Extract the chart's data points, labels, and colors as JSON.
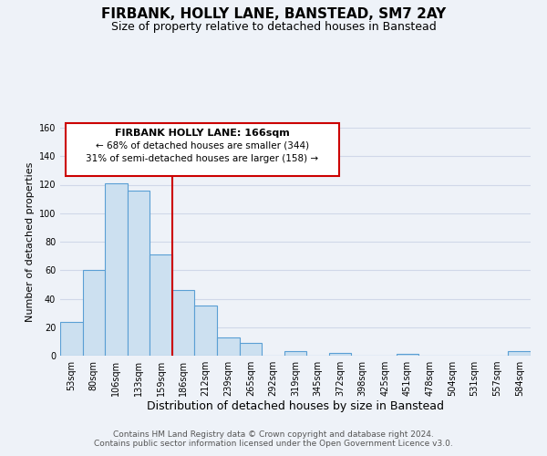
{
  "title": "FIRBANK, HOLLY LANE, BANSTEAD, SM7 2AY",
  "subtitle": "Size of property relative to detached houses in Banstead",
  "xlabel": "Distribution of detached houses by size in Banstead",
  "ylabel": "Number of detached properties",
  "bar_labels": [
    "53sqm",
    "80sqm",
    "106sqm",
    "133sqm",
    "159sqm",
    "186sqm",
    "212sqm",
    "239sqm",
    "265sqm",
    "292sqm",
    "319sqm",
    "345sqm",
    "372sqm",
    "398sqm",
    "425sqm",
    "451sqm",
    "478sqm",
    "504sqm",
    "531sqm",
    "557sqm",
    "584sqm"
  ],
  "bar_values": [
    24,
    60,
    121,
    116,
    71,
    46,
    35,
    13,
    9,
    0,
    3,
    0,
    2,
    0,
    0,
    1,
    0,
    0,
    0,
    0,
    3
  ],
  "bar_color": "#cce0f0",
  "bar_edge_color": "#5a9fd4",
  "vline_color": "#cc0000",
  "ylim": [
    0,
    160
  ],
  "yticks": [
    0,
    20,
    40,
    60,
    80,
    100,
    120,
    140,
    160
  ],
  "annotation_title": "FIRBANK HOLLY LANE: 166sqm",
  "annotation_line1": "← 68% of detached houses are smaller (344)",
  "annotation_line2": "31% of semi-detached houses are larger (158) →",
  "annotation_box_color": "#ffffff",
  "annotation_box_edge": "#cc0000",
  "footer_line1": "Contains HM Land Registry data © Crown copyright and database right 2024.",
  "footer_line2": "Contains public sector information licensed under the Open Government Licence v3.0.",
  "background_color": "#eef2f8",
  "grid_color": "#d0d8e8",
  "title_fontsize": 11,
  "subtitle_fontsize": 9,
  "xlabel_fontsize": 9,
  "ylabel_fontsize": 8,
  "tick_fontsize": 7,
  "footer_fontsize": 6.5
}
